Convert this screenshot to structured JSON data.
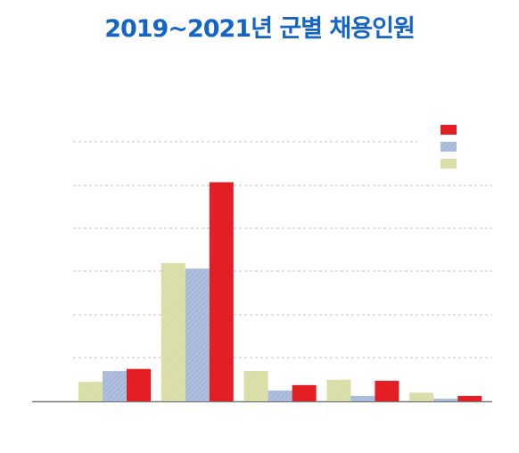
{
  "chart_data": {
    "type": "bar",
    "title": "2019~2021년 군별 채용인원",
    "xlabel": "",
    "ylabel": "",
    "categories": [
      "",
      "",
      "",
      "",
      ""
    ],
    "ylim": [
      0,
      1000
    ],
    "grid": true,
    "legend": "top-right",
    "series": [
      {
        "color": "#d8dca5",
        "values": [
          90,
          640,
          140,
          100,
          40
        ]
      },
      {
        "color": "#a8b8da",
        "values": [
          140,
          615,
          50,
          25,
          12
        ]
      },
      {
        "color": "#e31e24",
        "values": [
          150,
          1015,
          75,
          95,
          25
        ]
      }
    ]
  }
}
